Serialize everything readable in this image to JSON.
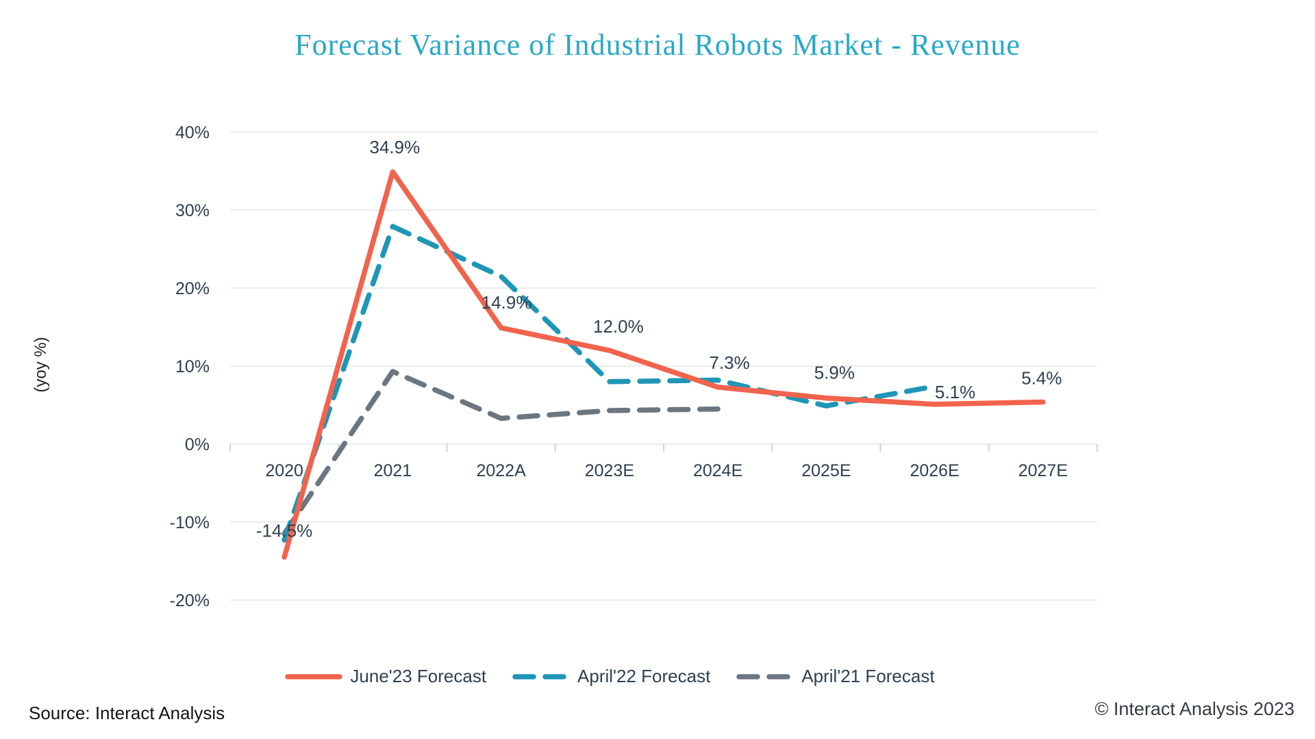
{
  "page": {
    "source": "Source: Interact Analysis",
    "copyright": "© Interact Analysis 2023"
  },
  "chart_data": {
    "type": "line",
    "title": "Forecast Variance of Industrial Robots Market - Revenue",
    "xlabel": "",
    "ylabel": "(yoy %)",
    "categories": [
      "2020",
      "2021",
      "2022A",
      "2023E",
      "2024E",
      "2025E",
      "2026E",
      "2027E"
    ],
    "ylim": [
      -20,
      40
    ],
    "ytick_step": 10,
    "ytick_suffix": "%",
    "grid": "horizontal",
    "grid_color": "#EBEBEB",
    "axis_text_color": "#2E3F51",
    "legend_position": "bottom",
    "series": [
      {
        "name": "June'23 Forecast",
        "color": "#F2634D",
        "style": "solid",
        "values": [
          -14.5,
          34.9,
          14.9,
          12.0,
          7.3,
          5.9,
          5.1,
          5.4
        ],
        "labels": [
          "-14.5%",
          "34.9%",
          "14.9%",
          "12.0%",
          "7.3%",
          "5.9%",
          "5.1%",
          "5.4%"
        ]
      },
      {
        "name": "April'22 Forecast",
        "color": "#1E96B8",
        "style": "dashed",
        "values": [
          -12.3,
          27.9,
          21.5,
          8.0,
          8.2,
          4.9,
          7.4,
          null
        ],
        "labels": null
      },
      {
        "name": "April'21 Forecast",
        "color": "#6B7680",
        "style": "dashed",
        "values": [
          -11.5,
          9.3,
          3.3,
          4.3,
          4.5,
          null,
          null,
          null
        ],
        "labels": null
      }
    ]
  }
}
